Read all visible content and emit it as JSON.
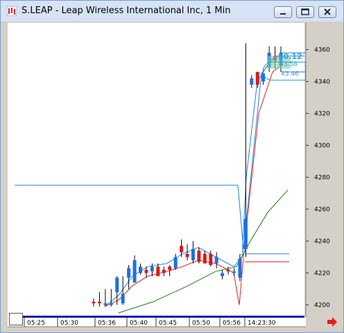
{
  "window": {
    "title": "S.LEAP - Leap Wireless International Inc, 1 Min",
    "buttons": [
      "minimize",
      "maximize",
      "close"
    ],
    "icon": "chart-app-icon"
  },
  "price_box": {
    "delta": "$0.12",
    "high": "43.58",
    "low": "43.46"
  },
  "chart_data": {
    "type": "candlestick",
    "x_axis_ticks": [
      "05:25",
      "05:30",
      "05:36",
      "05:40",
      "05:45",
      "05:50",
      "05:56",
      "14:23:30"
    ],
    "y_axis_ticks": [
      4200,
      4220,
      4240,
      4260,
      4280,
      4300,
      4320,
      4340,
      4360
    ],
    "ylim": [
      4195,
      4375
    ],
    "grid": false,
    "candles": [
      {
        "o": 4201,
        "h": 4204,
        "l": 4199,
        "c": 4202,
        "col": "red"
      },
      {
        "o": 4201,
        "h": 4208,
        "l": 4199,
        "c": 4202,
        "col": "red"
      },
      {
        "o": 4200,
        "h": 4210,
        "l": 4199,
        "c": 4201,
        "col": "blue"
      },
      {
        "o": 4200,
        "h": 4210,
        "l": 4199,
        "c": 4201,
        "col": "blue"
      },
      {
        "o": 4208,
        "h": 4218,
        "l": 4200,
        "c": 4217,
        "col": "blue"
      },
      {
        "o": 4207,
        "h": 4218,
        "l": 4200,
        "c": 4201,
        "col": "blue"
      },
      {
        "o": 4217,
        "h": 4225,
        "l": 4210,
        "c": 4223,
        "col": "blue"
      },
      {
        "o": 4228,
        "h": 4231,
        "l": 4214,
        "c": 4214,
        "col": "blue"
      },
      {
        "o": 4224,
        "h": 4226,
        "l": 4219,
        "c": 4220,
        "col": "blue"
      },
      {
        "o": 4220,
        "h": 4224,
        "l": 4217,
        "c": 4222,
        "col": "red"
      },
      {
        "o": 4221,
        "h": 4226,
        "l": 4218,
        "c": 4224,
        "col": "blue"
      },
      {
        "o": 4224,
        "h": 4226,
        "l": 4219,
        "c": 4218,
        "col": "red"
      },
      {
        "o": 4220,
        "h": 4224,
        "l": 4218,
        "c": 4222,
        "col": "red"
      },
      {
        "o": 4222,
        "h": 4225,
        "l": 4218,
        "c": 4224,
        "col": "red"
      },
      {
        "o": 4223,
        "h": 4232,
        "l": 4222,
        "c": 4230,
        "col": "blue"
      },
      {
        "o": 4237,
        "h": 4241,
        "l": 4230,
        "c": 4233,
        "col": "red"
      },
      {
        "o": 4232,
        "h": 4238,
        "l": 4228,
        "c": 4230,
        "col": "red"
      },
      {
        "o": 4228,
        "h": 4240,
        "l": 4226,
        "c": 4235,
        "col": "blue"
      },
      {
        "o": 4234,
        "h": 4236,
        "l": 4226,
        "c": 4227,
        "col": "red"
      },
      {
        "o": 4232,
        "h": 4234,
        "l": 4226,
        "c": 4226,
        "col": "red"
      },
      {
        "o": 4232,
        "h": 4234,
        "l": 4224,
        "c": 4225,
        "col": "red"
      },
      {
        "o": 4230,
        "h": 4233,
        "l": 4223,
        "c": 4226,
        "col": "blue"
      },
      {
        "o": 4218,
        "h": 4222,
        "l": 4216,
        "c": 4220,
        "col": "blue"
      },
      {
        "o": 4221,
        "h": 4224,
        "l": 4219,
        "c": 4222,
        "col": "red"
      },
      {
        "o": 4220,
        "h": 4223,
        "l": 4218,
        "c": 4221,
        "col": "blue"
      },
      {
        "o": 4217,
        "h": 4232,
        "l": 4215,
        "c": 4229,
        "col": "blue"
      },
      {
        "o": 4235,
        "h": 4364,
        "l": 4230,
        "c": 4254,
        "col": "blue"
      },
      {
        "o": 4338,
        "h": 4344,
        "l": 4336,
        "c": 4342,
        "col": "blue"
      },
      {
        "o": 4338,
        "h": 4346,
        "l": 4336,
        "c": 4346,
        "col": "red"
      },
      {
        "o": 4340,
        "h": 4348,
        "l": 4338,
        "c": 4345,
        "col": "blue"
      },
      {
        "o": 4349,
        "h": 4362,
        "l": 4346,
        "c": 4358,
        "col": "blue"
      },
      {
        "o": 4356,
        "h": 4362,
        "l": 4348,
        "c": 4353,
        "col": "red"
      },
      {
        "o": 4350,
        "h": 4362,
        "l": 4346,
        "c": 4358,
        "col": "blue"
      }
    ]
  },
  "colors": {
    "up": "#1f6fe0",
    "down": "#d81a1a",
    "ma_blue": "#1f7fd8",
    "ma_red": "#e02020",
    "ma_green": "#1a7a1a",
    "axis_bar": "#1414b4"
  }
}
